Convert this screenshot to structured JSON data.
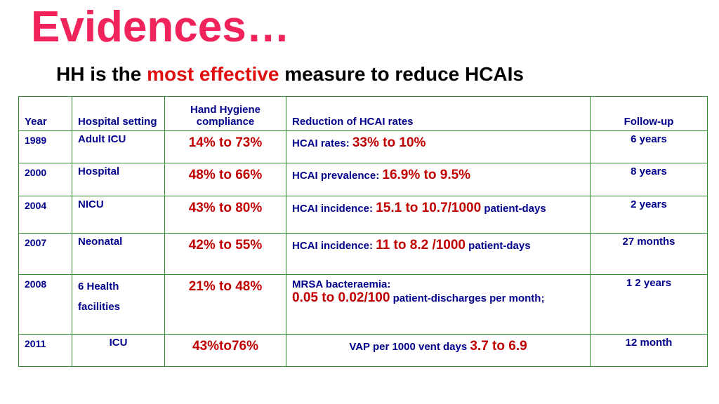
{
  "title": "Evidences…",
  "subtitle": {
    "prefix": "HH is the ",
    "highlight": "most effective",
    "suffix": " measure to reduce HCAIs"
  },
  "table": {
    "headers": {
      "year": "Year",
      "setting": "Hospital setting",
      "compliance": "Hand Hygiene compliance",
      "reduction": "Reduction of HCAI rates",
      "followup": "Follow-up"
    },
    "rows": [
      {
        "year": "1989",
        "setting": "Adult ICU",
        "compliance": "14% to 73%",
        "reduction_label": "HCAI rates: ",
        "reduction_value": "33% to 10%",
        "reduction_suffix": "",
        "followup": "6 years"
      },
      {
        "year": "2000",
        "setting": "Hospital",
        "compliance": "48% to 66%",
        "reduction_label": "HCAI prevalence: ",
        "reduction_value": "16.9% to 9.5%",
        "reduction_suffix": "",
        "followup": "8 years"
      },
      {
        "year": "2004",
        "setting": "NICU",
        "compliance": "43% to 80%",
        "reduction_label": "HCAI incidence: ",
        "reduction_value": "15.1 to 10.7/1000",
        "reduction_suffix": " patient-days",
        "followup": "2 years"
      },
      {
        "year": "2007",
        "setting": "Neonatal",
        "compliance": "42% to 55%",
        "reduction_label": "HCAI incidence: ",
        "reduction_value": "11 to 8.2 /1000",
        "reduction_suffix": " patient-days",
        "followup": "27 months"
      },
      {
        "year": "2008",
        "setting": "6  Health facilities",
        "compliance": "21% to 48%",
        "reduction_label": "MRSA bacteraemia:",
        "reduction_value": "0.05 to 0.02/100",
        "reduction_suffix": " patient-discharges per month;",
        "followup": "1 2 years"
      },
      {
        "year": "2011",
        "setting": "ICU",
        "compliance": "43%to76%",
        "reduction_label": "VAP per 1000 vent days ",
        "reduction_value": "3.7 to 6.9",
        "reduction_suffix": "",
        "followup": "12 month"
      }
    ]
  }
}
